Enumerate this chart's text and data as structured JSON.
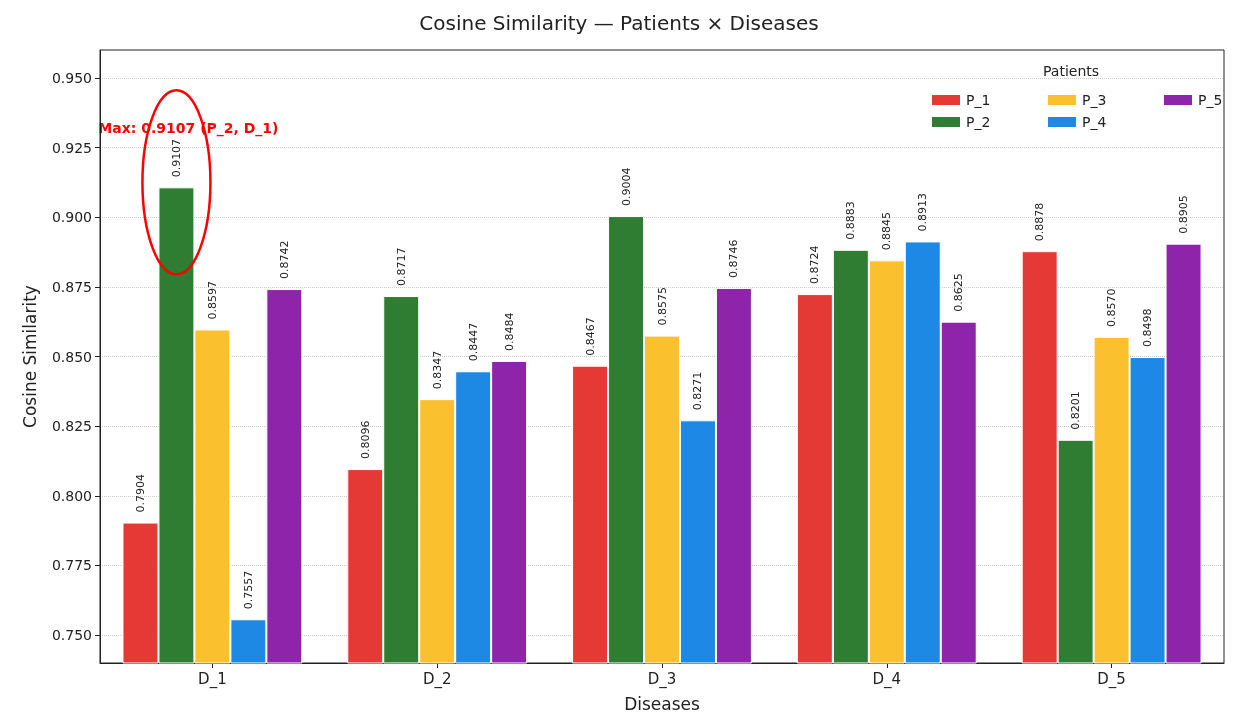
{
  "chart_data": {
    "type": "bar",
    "title": "Cosine Similarity — Patients × Diseases",
    "xlabel": "Diseases",
    "ylabel": "Cosine Similarity",
    "legend_title": "Patients",
    "categories": [
      "D_1",
      "D_2",
      "D_3",
      "D_4",
      "D_5"
    ],
    "series": [
      {
        "name": "P_1",
        "color": "#e53935",
        "values": [
          0.7904,
          0.8096,
          0.8467,
          0.8724,
          0.8878
        ],
        "value_labels": [
          "0.7904",
          "0.8096",
          "0.8467",
          "0.8724",
          "0.8878"
        ]
      },
      {
        "name": "P_2",
        "color": "#2e7d32",
        "values": [
          0.9107,
          0.8717,
          0.9004,
          0.8883,
          0.8201
        ],
        "value_labels": [
          "0.9107",
          "0.8717",
          "0.9004",
          "0.8883",
          "0.8201"
        ]
      },
      {
        "name": "P_3",
        "color": "#fbc02d",
        "values": [
          0.8597,
          0.8347,
          0.8575,
          0.8845,
          0.857
        ],
        "value_labels": [
          "0.8597",
          "0.8347",
          "0.8575",
          "0.8845",
          "0.8570"
        ]
      },
      {
        "name": "P_4",
        "color": "#1e88e5",
        "values": [
          0.7557,
          0.8447,
          0.8271,
          0.8913,
          0.8498
        ],
        "value_labels": [
          "0.7557",
          "0.8447",
          "0.8271",
          "0.8913",
          "0.8498"
        ]
      },
      {
        "name": "P_5",
        "color": "#8e24aa",
        "values": [
          0.8742,
          0.8484,
          0.8746,
          0.8625,
          0.8905
        ],
        "value_labels": [
          "0.8742",
          "0.8484",
          "0.8746",
          "0.8625",
          "0.8905"
        ]
      }
    ],
    "ylim": [
      0.74,
      0.96
    ],
    "yticks": [
      {
        "value": 0.75,
        "label": "0.750"
      },
      {
        "value": 0.775,
        "label": "0.775"
      },
      {
        "value": 0.8,
        "label": "0.800"
      },
      {
        "value": 0.825,
        "label": "0.825"
      },
      {
        "value": 0.85,
        "label": "0.850"
      },
      {
        "value": 0.875,
        "label": "0.875"
      },
      {
        "value": 0.9,
        "label": "0.900"
      },
      {
        "value": 0.925,
        "label": "0.925"
      },
      {
        "value": 0.95,
        "label": "0.950"
      }
    ],
    "grid": "y",
    "legend": "top right",
    "annotations": [
      "Max: 0.9107 (P_2, D_1)"
    ]
  }
}
